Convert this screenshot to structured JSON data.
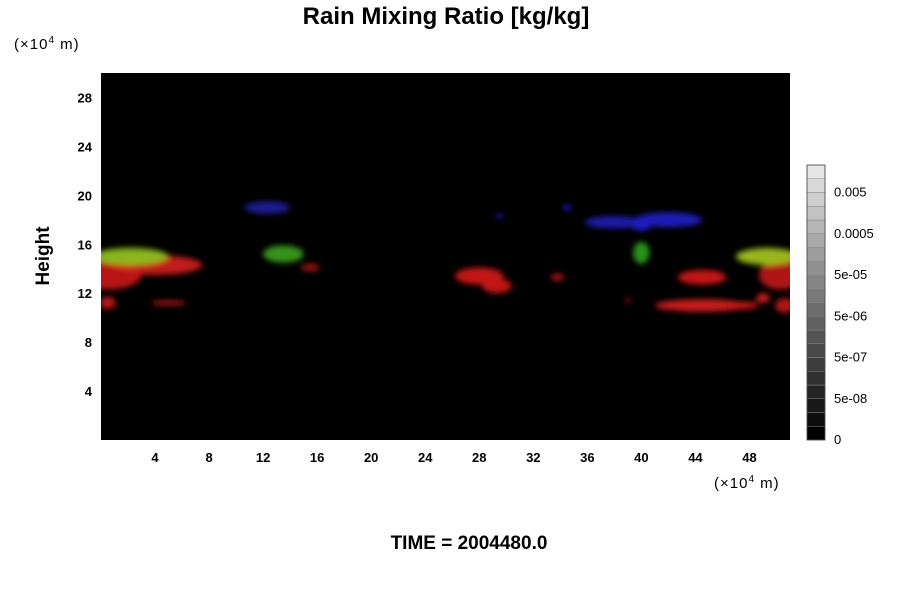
{
  "chart_data": {
    "type": "heatmap",
    "title": "Rain Mixing Ratio [kg/kg]",
    "xlabel": "",
    "x_unit_prefix": "(×10",
    "x_unit_exp": "4",
    "x_unit_suffix": " m)",
    "ylabel": "Height",
    "y_unit_prefix": "(×10",
    "y_unit_exp": "4",
    "y_unit_suffix": " m)",
    "xlim": [
      0,
      51
    ],
    "ylim": [
      0,
      30
    ],
    "x_ticks": [
      4,
      8,
      12,
      16,
      20,
      24,
      28,
      32,
      36,
      40,
      44,
      48
    ],
    "y_ticks": [
      4,
      8,
      12,
      16,
      20,
      24,
      28
    ],
    "time_label": "TIME = 2004480.0",
    "background_color": "#000000",
    "colorbar": {
      "levels": 20,
      "tick_labels": [
        "0",
        "5e-08",
        "5e-07",
        "5e-06",
        "5e-05",
        "0.0005",
        "0.005"
      ],
      "tick_levels": [
        0,
        3,
        6,
        9,
        12,
        15,
        18
      ]
    },
    "features": [
      {
        "color": "#c01818",
        "x": 0.5,
        "y": 13.5,
        "rx": 2.5,
        "ry": 1.2
      },
      {
        "color": "#cc1a1a",
        "x": 4.0,
        "y": 14.3,
        "rx": 3.5,
        "ry": 0.8
      },
      {
        "color": "#8dbf1a",
        "x": 2.2,
        "y": 15.0,
        "rx": 2.8,
        "ry": 0.7
      },
      {
        "color": "#c01818",
        "x": 0.5,
        "y": 11.2,
        "rx": 0.6,
        "ry": 0.5
      },
      {
        "color": "#b01515",
        "x": 5.0,
        "y": 11.2,
        "rx": 1.3,
        "ry": 0.2
      },
      {
        "color": "#1a1a9a",
        "x": 12.3,
        "y": 19.0,
        "rx": 1.7,
        "ry": 0.5
      },
      {
        "color": "#3a9a1a",
        "x": 13.5,
        "y": 15.2,
        "rx": 1.5,
        "ry": 0.7
      },
      {
        "color": "#a01515",
        "x": 15.5,
        "y": 14.1,
        "rx": 0.7,
        "ry": 0.3
      },
      {
        "color": "#cc1818",
        "x": 28.0,
        "y": 13.4,
        "rx": 1.8,
        "ry": 0.7
      },
      {
        "color": "#c81818",
        "x": 29.3,
        "y": 12.6,
        "rx": 1.1,
        "ry": 0.6
      },
      {
        "color": "#b01515",
        "x": 33.8,
        "y": 13.3,
        "rx": 0.5,
        "ry": 0.3
      },
      {
        "color": "#1818a0",
        "x": 29.5,
        "y": 18.3,
        "rx": 0.3,
        "ry": 0.2
      },
      {
        "color": "#1818a0",
        "x": 34.5,
        "y": 19.0,
        "rx": 0.3,
        "ry": 0.3
      },
      {
        "color": "#1a1ab0",
        "x": 38.0,
        "y": 17.8,
        "rx": 2.2,
        "ry": 0.5
      },
      {
        "color": "#1e1ec0",
        "x": 42.0,
        "y": 18.0,
        "rx": 2.5,
        "ry": 0.6
      },
      {
        "color": "#2020c8",
        "x": 40.0,
        "y": 17.5,
        "rx": 0.7,
        "ry": 0.4
      },
      {
        "color": "#2a9a1a",
        "x": 40.0,
        "y": 15.3,
        "rx": 0.6,
        "ry": 0.9
      },
      {
        "color": "#cc1818",
        "x": 44.5,
        "y": 13.3,
        "rx": 1.8,
        "ry": 0.6
      },
      {
        "color": "#d01a1a",
        "x": 44.5,
        "y": 11.0,
        "rx": 3.5,
        "ry": 0.5
      },
      {
        "color": "#c81818",
        "x": 47.5,
        "y": 11.0,
        "rx": 1.2,
        "ry": 0.3
      },
      {
        "color": "#d01a1a",
        "x": 49.0,
        "y": 11.6,
        "rx": 0.5,
        "ry": 0.4
      },
      {
        "color": "#b81818",
        "x": 50.3,
        "y": 13.5,
        "rx": 1.6,
        "ry": 1.2
      },
      {
        "color": "#a0c020",
        "x": 49.3,
        "y": 15.0,
        "rx": 2.3,
        "ry": 0.7
      },
      {
        "color": "#b81818",
        "x": 50.6,
        "y": 11.0,
        "rx": 0.7,
        "ry": 0.6
      },
      {
        "color": "#a01515",
        "x": 39.0,
        "y": 11.4,
        "rx": 0.2,
        "ry": 0.2
      }
    ]
  }
}
